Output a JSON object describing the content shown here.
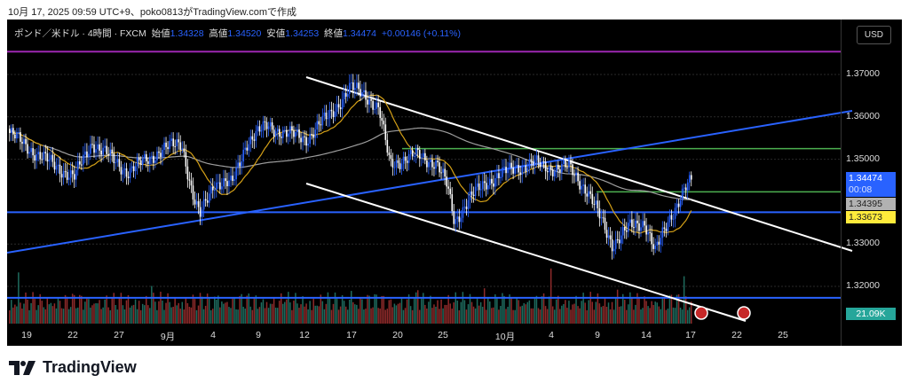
{
  "caption": "10月 17, 2025 09:59 UTC+9、poko0813がTradingView.comで作成",
  "legend": {
    "symbol": "ポンド／米ドル · 4時間 · FXCM",
    "open_label": "始値",
    "open": "1.34328",
    "high_label": "高値",
    "high": "1.34520",
    "low_label": "安値",
    "low": "1.34253",
    "close_label": "終値",
    "close": "1.34474",
    "change": "+0.00146 (+0.11%)"
  },
  "currency_button": "USD",
  "price_tags": {
    "last": "1.34474",
    "countdown": "00:08",
    "grey": "1.34395",
    "ma": "1.33673",
    "volume": "21.09K"
  },
  "brand": "TradingView",
  "colors": {
    "up": "#2962ff",
    "down": "#ffffff",
    "vol_up": "#1e6b5e",
    "vol_down": "#8e2a2a",
    "ma_fast": "#d4a017",
    "ma_slow": "#9e9e9e"
  },
  "chart_data": {
    "type": "candlestick",
    "title": "GBP/USD 4H FXCM",
    "yticks": [
      "1.37000",
      "1.36000",
      "1.35000",
      "1.33000",
      "1.32000"
    ],
    "ylim": [
      1.3115,
      1.3835
    ],
    "xticks": [
      "19",
      "22",
      "27",
      "9月",
      "4",
      "9",
      "12",
      "17",
      "20",
      "25",
      "10月",
      "4",
      "9",
      "14",
      "17",
      "22",
      "25"
    ],
    "close_path": [
      [
        0,
        1.3562
      ],
      [
        8,
        1.351
      ],
      [
        18,
        1.3457
      ],
      [
        23,
        1.354
      ],
      [
        33,
        1.347
      ],
      [
        42,
        1.352
      ],
      [
        48,
        1.354
      ],
      [
        51,
        1.3415
      ],
      [
        53,
        1.3363
      ],
      [
        57,
        1.3447
      ],
      [
        62,
        1.344
      ],
      [
        66,
        1.354
      ],
      [
        72,
        1.358
      ],
      [
        77,
        1.356
      ],
      [
        83,
        1.355
      ],
      [
        89,
        1.3603
      ],
      [
        95,
        1.3667
      ],
      [
        99,
        1.3656
      ],
      [
        103,
        1.3614
      ],
      [
        106,
        1.349
      ],
      [
        114,
        1.351
      ],
      [
        119,
        1.349
      ],
      [
        122,
        1.3436
      ],
      [
        124,
        1.3353
      ],
      [
        128,
        1.3405
      ],
      [
        133,
        1.3447
      ],
      [
        141,
        1.348
      ],
      [
        146,
        1.349
      ],
      [
        151,
        1.348
      ],
      [
        156,
        1.348
      ],
      [
        161,
        1.3426
      ],
      [
        168,
        1.33
      ],
      [
        173,
        1.334
      ],
      [
        177,
        1.3353
      ],
      [
        180,
        1.328
      ],
      [
        184,
        1.3363
      ],
      [
        188,
        1.3426
      ],
      [
        190,
        1.3447
      ]
    ],
    "levels": {
      "purple": 1.3754,
      "green": 1.3525,
      "green_short": 1.3423,
      "blue": 1.3375,
      "blue_low": 1.3173
    }
  }
}
